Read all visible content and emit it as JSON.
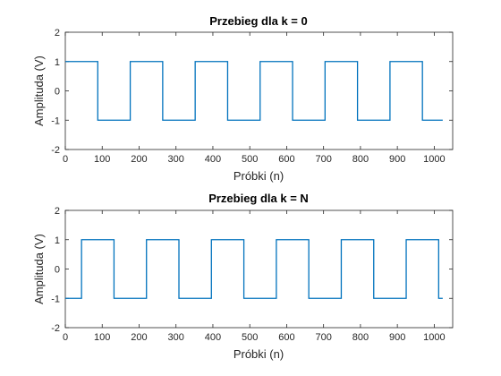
{
  "chart_data": [
    {
      "type": "line",
      "title": "Przebieg dla k = 0",
      "xlabel": "Próbki (n)",
      "ylabel": "Amplituda (V)",
      "xlim": [
        0,
        1050
      ],
      "ylim": [
        -2,
        2
      ],
      "xticks": [
        "0",
        "100",
        "200",
        "300",
        "400",
        "500",
        "600",
        "700",
        "800",
        "900",
        "1000"
      ],
      "yticks": [
        "2",
        "1",
        "0",
        "-1",
        "-2"
      ],
      "grid": false,
      "color": "#0072BD",
      "series": [
        {
          "x": [
            0,
            88,
            88,
            176,
            176,
            264,
            264,
            352,
            352,
            440,
            440,
            528,
            528,
            616,
            616,
            704,
            704,
            792,
            792,
            880,
            880,
            968,
            968,
            1023
          ],
          "y": [
            1,
            1,
            -1,
            -1,
            1,
            1,
            -1,
            -1,
            1,
            1,
            -1,
            -1,
            1,
            1,
            -1,
            -1,
            1,
            1,
            -1,
            -1,
            1,
            1,
            -1,
            -1
          ]
        }
      ]
    },
    {
      "type": "line",
      "title": "Przebieg dla k = N",
      "xlabel": "Próbki (n)",
      "ylabel": "Amplituda (V)",
      "xlim": [
        0,
        1050
      ],
      "ylim": [
        -2,
        2
      ],
      "xticks": [
        "0",
        "100",
        "200",
        "300",
        "400",
        "500",
        "600",
        "700",
        "800",
        "900",
        "1000"
      ],
      "yticks": [
        "2",
        "1",
        "0",
        "-1",
        "-2"
      ],
      "grid": false,
      "color": "#0072BD",
      "series": [
        {
          "x": [
            0,
            44,
            44,
            132,
            132,
            220,
            220,
            308,
            308,
            396,
            396,
            484,
            484,
            572,
            572,
            660,
            660,
            748,
            748,
            836,
            836,
            924,
            924,
            1012,
            1012,
            1023
          ],
          "y": [
            -1,
            -1,
            1,
            1,
            -1,
            -1,
            1,
            1,
            -1,
            -1,
            1,
            1,
            -1,
            -1,
            1,
            1,
            -1,
            -1,
            1,
            1,
            -1,
            -1,
            1,
            1,
            -1,
            -1
          ]
        }
      ]
    }
  ]
}
